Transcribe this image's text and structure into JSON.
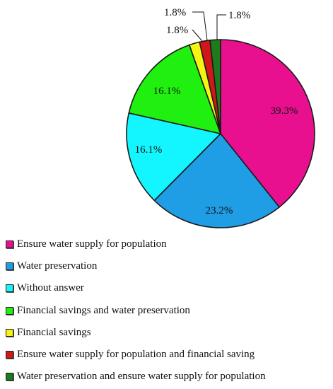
{
  "chart_data": {
    "type": "pie",
    "slices": [
      {
        "label": "Ensure water supply for population",
        "value": 39.3,
        "display": "39.3%",
        "color": "#e8108e"
      },
      {
        "label": "Water preservation",
        "value": 23.2,
        "display": "23.2%",
        "color": "#1f9ee6"
      },
      {
        "label": "Without answer",
        "value": 16.1,
        "display": "16.1%",
        "color": "#14f6ff"
      },
      {
        "label": "Financial savings and water preservation",
        "value": 16.1,
        "display": "16.1%",
        "color": "#1ff00f"
      },
      {
        "label": "Financial savings",
        "value": 1.8,
        "display": "1.8%",
        "color": "#f5f514"
      },
      {
        "label": "Ensure water supply for population and financial saving",
        "value": 1.8,
        "display": "1.8%",
        "color": "#d01818"
      },
      {
        "label": "Water preservation and ensure water supply for population",
        "value": 1.8,
        "display": "1.8%",
        "color": "#1d7a1d"
      }
    ],
    "legend_position": "bottom-left"
  }
}
